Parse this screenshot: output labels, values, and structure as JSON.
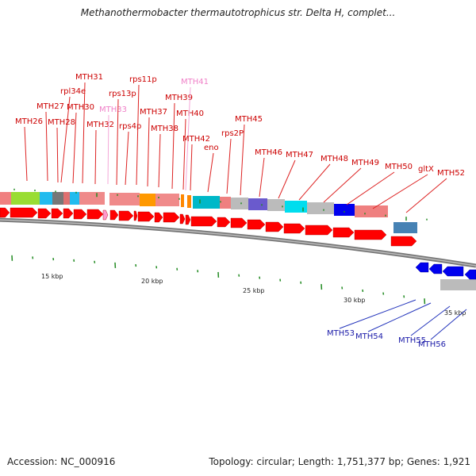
{
  "title": "Methanothermobacter thermautotrophicus str. Delta H, complet...",
  "footer": {
    "accession": "Accession: NC_000916",
    "summary": "Topology: circular; Length: 1,751,377 bp; Genes: 1,921"
  },
  "colors": {
    "forward_arrow": "#ff0000",
    "reverse_arrow": "#0000ee",
    "forward_label": "#cc0000",
    "reverse_label": "#1a1aa8",
    "faded_label": "#f080c8",
    "backbone": "#888888",
    "tick": "#228b22"
  },
  "kbp_labels": [
    "15 kbp",
    "20 kbp",
    "25 kbp",
    "30 kbp",
    "35 kbp"
  ],
  "forward_genes": [
    "MTH26",
    "MTH27",
    "rpl34e",
    "MTH28",
    "MTH30",
    "MTH31",
    "MTH32",
    "MTH33",
    "rps13p",
    "rps4p",
    "rps11p",
    "MTH37",
    "MTH38",
    "MTH39",
    "MTH40",
    "MTH41",
    "MTH42",
    "eno",
    "rps2P",
    "MTH45",
    "MTH46",
    "MTH47",
    "MTH48",
    "MTH49",
    "MTH50",
    "gltX",
    "MTH52"
  ],
  "faded_genes": [
    "MTH33",
    "MTH41"
  ],
  "reverse_genes": [
    "MTH53",
    "MTH54",
    "MTH55",
    "MTH56"
  ]
}
